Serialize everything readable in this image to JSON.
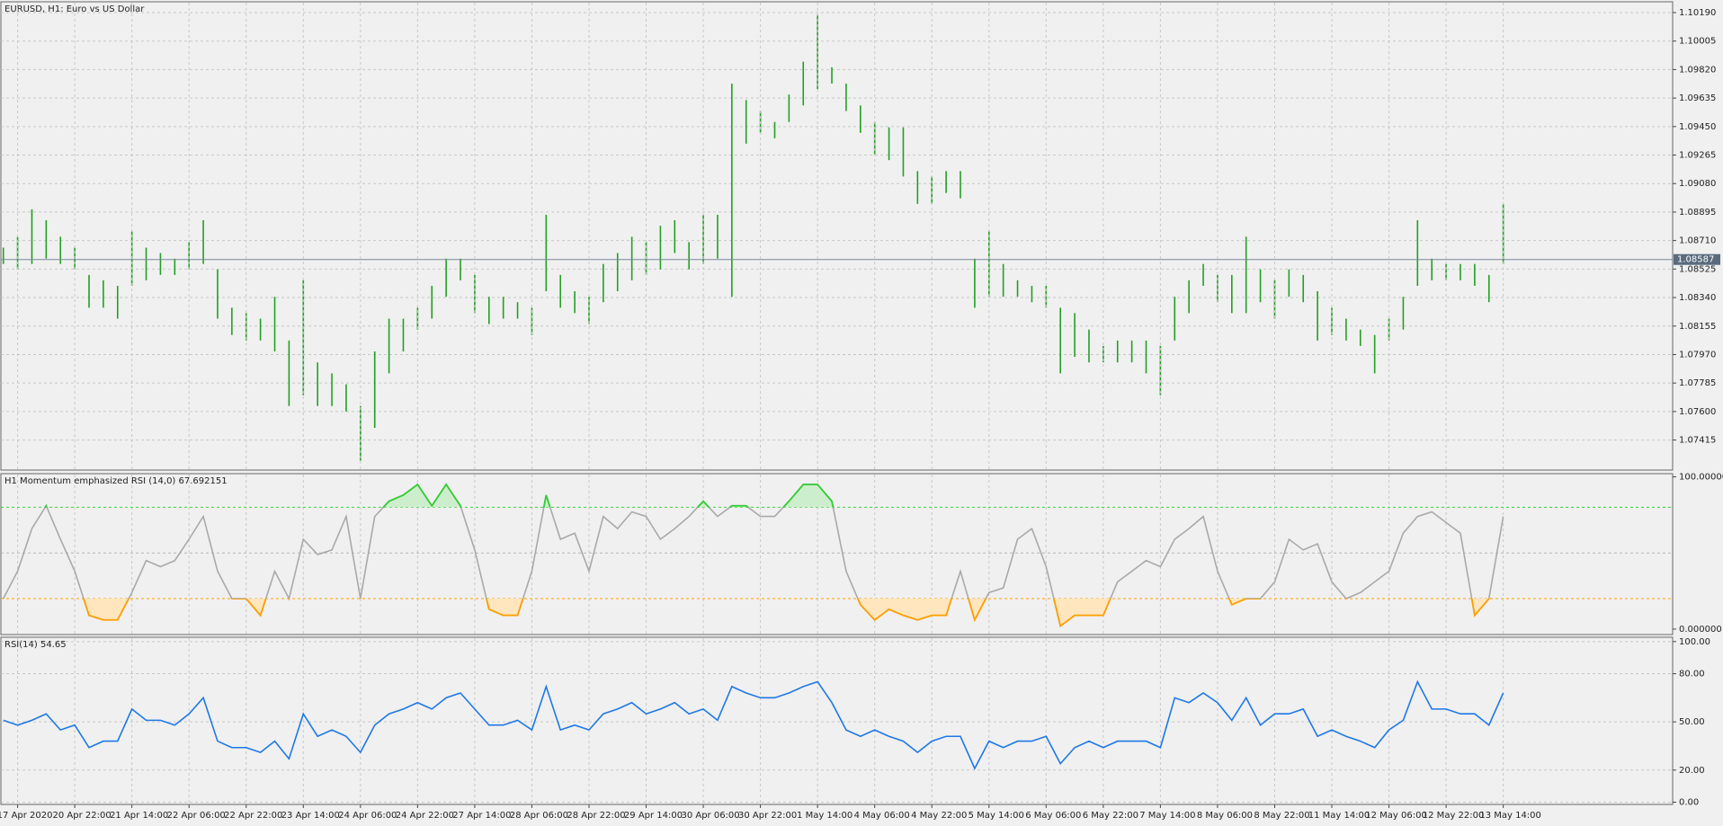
{
  "chart_data": [
    {
      "type": "ohlc",
      "title": "EURUSD, H1:  Euro vs US Dollar",
      "color": "#22a022",
      "grid": true,
      "categories": [
        null,
        "17 Apr 2020",
        null,
        null,
        null,
        "20 Apr 22:00",
        null,
        null,
        null,
        "21 Apr 14:00",
        null,
        null,
        null,
        "22 Apr 06:00",
        null,
        null,
        null,
        "22 Apr 22:00",
        null,
        null,
        null,
        "23 Apr 14:00",
        null,
        null,
        null,
        "24 Apr 06:00",
        null,
        null,
        null,
        "24 Apr 22:00",
        null,
        null,
        null,
        "27 Apr 14:00",
        null,
        null,
        null,
        "28 Apr 06:00",
        null,
        null,
        null,
        "28 Apr 22:00",
        null,
        null,
        null,
        "29 Apr 14:00",
        null,
        null,
        null,
        "30 Apr 06:00",
        null,
        null,
        null,
        "30 Apr 22:00",
        null,
        null,
        null,
        "1 May 14:00",
        null,
        null,
        null,
        "4 May 06:00",
        null,
        null,
        null,
        "4 May 22:00",
        null,
        null,
        null,
        "5 May 14:00",
        null,
        null,
        null,
        "6 May 06:00",
        null,
        null,
        null,
        "6 May 22:00",
        null,
        null,
        null,
        "7 May 14:00",
        null,
        null,
        null,
        "8 May 06:00",
        null,
        null,
        null,
        "8 May 22:00",
        null,
        null,
        null,
        "11 May 14:00",
        null,
        null,
        null,
        "12 May 06:00",
        null,
        null,
        null,
        "12 May 22:00",
        null,
        null,
        null,
        "13 May 14:00"
      ],
      "high": [
        1.08664,
        1.08735,
        1.08913,
        1.08842,
        1.08735,
        1.08664,
        1.08487,
        1.08452,
        1.08416,
        1.08771,
        1.08664,
        1.08629,
        1.08593,
        1.087,
        1.08842,
        1.08523,
        1.08274,
        1.08239,
        1.08203,
        1.08345,
        1.08061,
        1.08452,
        1.07919,
        1.07848,
        1.07777,
        1.07636,
        1.0799,
        1.08203,
        1.08203,
        1.08274,
        1.08416,
        1.08593,
        1.08593,
        1.08487,
        1.08345,
        1.08345,
        1.0831,
        1.08274,
        1.08877,
        1.08487,
        1.08381,
        1.08345,
        1.08558,
        1.08629,
        1.08735,
        1.087,
        1.08806,
        1.08842,
        1.087,
        1.08877,
        1.08877,
        1.09729,
        1.09622,
        1.09551,
        1.0948,
        1.09658,
        1.09871,
        1.10176,
        1.09835,
        1.09729,
        1.09587,
        1.0948,
        1.09445,
        1.09445,
        1.09161,
        1.09126,
        1.09161,
        1.09161,
        1.08593,
        1.08771,
        1.08558,
        1.08452,
        1.08416,
        1.08416,
        1.08274,
        1.08239,
        1.08132,
        1.08026,
        1.08061,
        1.08061,
        1.08061,
        1.08026,
        1.08345,
        1.08452,
        1.08558,
        1.08487,
        1.08487,
        1.08735,
        1.08523,
        1.08452,
        1.08523,
        1.08487,
        1.08381,
        1.08274,
        1.08203,
        1.08132,
        1.08097,
        1.08203,
        1.08345,
        1.08842,
        1.08593,
        1.08558,
        1.08558,
        1.08558,
        1.08487,
        1.08948
      ],
      "low": [
        1.08558,
        1.08523,
        1.08558,
        1.08593,
        1.08558,
        1.08523,
        1.08274,
        1.08274,
        1.08203,
        1.08416,
        1.08452,
        1.08487,
        1.08487,
        1.08523,
        1.08558,
        1.08203,
        1.08097,
        1.08061,
        1.08061,
        1.0799,
        1.07636,
        1.07706,
        1.07636,
        1.07636,
        1.076,
        1.07281,
        1.07494,
        1.07848,
        1.0799,
        1.08132,
        1.08203,
        1.08345,
        1.08452,
        1.08239,
        1.08168,
        1.08203,
        1.08203,
        1.08097,
        1.08381,
        1.08274,
        1.08239,
        1.08168,
        1.0831,
        1.08381,
        1.08452,
        1.08487,
        1.08523,
        1.08629,
        1.08523,
        1.08558,
        1.08593,
        1.08345,
        1.09339,
        1.09409,
        1.09374,
        1.0948,
        1.09587,
        1.09693,
        1.09729,
        1.09551,
        1.09409,
        1.09268,
        1.09232,
        1.09126,
        1.08948,
        1.08948,
        1.09019,
        1.08984,
        1.08274,
        1.08345,
        1.08345,
        1.08345,
        1.0831,
        1.08274,
        1.07848,
        1.07955,
        1.07919,
        1.07919,
        1.07919,
        1.07919,
        1.07848,
        1.07706,
        1.08061,
        1.08239,
        1.08416,
        1.0831,
        1.08239,
        1.08239,
        1.0831,
        1.08203,
        1.08345,
        1.0831,
        1.08061,
        1.08097,
        1.08061,
        1.08026,
        1.07848,
        1.08061,
        1.08132,
        1.08416,
        1.08452,
        1.08452,
        1.08452,
        1.08416,
        1.0831,
        1.08558
      ],
      "last_price": 1.08587,
      "ylim": [
        1.0722,
        1.1026
      ],
      "yticks": [
        {
          "value": 1.1019,
          "label": "1.10190"
        },
        1.10005,
        {
          "value": 1.0982,
          "label": "1.09820"
        },
        1.09635,
        {
          "value": 1.0945,
          "label": "1.09450"
        },
        1.09265,
        {
          "value": 1.0908,
          "label": "1.09080"
        },
        1.08895,
        {
          "value": 1.0871,
          "label": "1.08710"
        },
        1.08525,
        {
          "value": 1.0834,
          "label": "1.08340"
        },
        1.08155,
        {
          "value": 1.0797,
          "label": "1.07970"
        },
        1.07785,
        {
          "value": 1.076,
          "label": "1.07600"
        },
        1.07415
      ]
    },
    {
      "type": "emphasized-line",
      "title": "H1 Momentum emphasized RSI (14,0) 67.692151",
      "color": "#a9a9a9",
      "upper_color": "#32cd32",
      "lower_color": "#ff9f00",
      "upper_fill": "#cdeecd",
      "lower_fill": "#ffe6bf",
      "values": [
        20,
        38,
        66,
        81,
        59,
        38,
        9,
        6,
        6,
        24,
        45,
        41,
        45,
        59,
        74,
        38,
        20,
        20,
        9,
        38,
        20,
        59,
        49,
        52,
        74,
        20,
        74,
        84,
        88,
        95,
        81,
        95,
        81,
        52,
        13,
        9,
        9,
        38,
        88,
        59,
        63,
        38,
        74,
        66,
        77,
        74,
        59,
        66,
        74,
        84,
        74,
        81,
        81,
        74,
        74,
        84,
        95,
        95,
        84,
        38,
        16,
        6,
        13,
        9,
        6,
        9,
        9,
        38,
        6,
        24,
        27,
        59,
        66,
        41,
        2,
        9,
        9,
        9,
        31,
        38,
        45,
        41,
        59,
        66,
        74,
        38,
        16,
        20,
        20,
        31,
        59,
        52,
        56,
        31,
        20,
        24,
        31,
        38,
        63,
        74,
        77,
        70,
        63,
        9,
        20,
        74
      ],
      "levels": [
        80,
        50,
        20
      ],
      "ylim": [
        -3.6,
        102.1
      ],
      "yticks": [
        {
          "value": 100,
          "label": "100.000000"
        },
        {
          "value": 0,
          "label": "0.000000"
        }
      ]
    },
    {
      "type": "line",
      "title": "RSI(14) 54.65",
      "color": "#1e78e6",
      "grid": true,
      "values": [
        51,
        48,
        51,
        55,
        45,
        48,
        34,
        38,
        38,
        58,
        51,
        51,
        48,
        55,
        65,
        38,
        34,
        34,
        31,
        38,
        27,
        55,
        41,
        45,
        41,
        31,
        48,
        55,
        58,
        62,
        58,
        65,
        68,
        58,
        48,
        48,
        51,
        45,
        72,
        45,
        48,
        45,
        55,
        58,
        62,
        55,
        58,
        62,
        55,
        58,
        51,
        72,
        68,
        65,
        65,
        68,
        72,
        75,
        62,
        45,
        41,
        45,
        41,
        38,
        31,
        38,
        41,
        41,
        21,
        38,
        34,
        38,
        38,
        41,
        24,
        34,
        38,
        34,
        38,
        38,
        38,
        34,
        65,
        62,
        68,
        62,
        51,
        65,
        48,
        55,
        55,
        58,
        41,
        45,
        41,
        38,
        34,
        45,
        51,
        75,
        58,
        58,
        55,
        55,
        48,
        68
      ],
      "ylim": [
        -1.4,
        102.7
      ],
      "yticks": [
        {
          "value": 100,
          "label": "100.00"
        },
        {
          "value": 80,
          "label": "80.00"
        },
        {
          "value": 50,
          "label": "50.00"
        },
        {
          "value": 20,
          "label": "20.00"
        },
        {
          "value": 0,
          "label": "0.00"
        }
      ]
    }
  ]
}
